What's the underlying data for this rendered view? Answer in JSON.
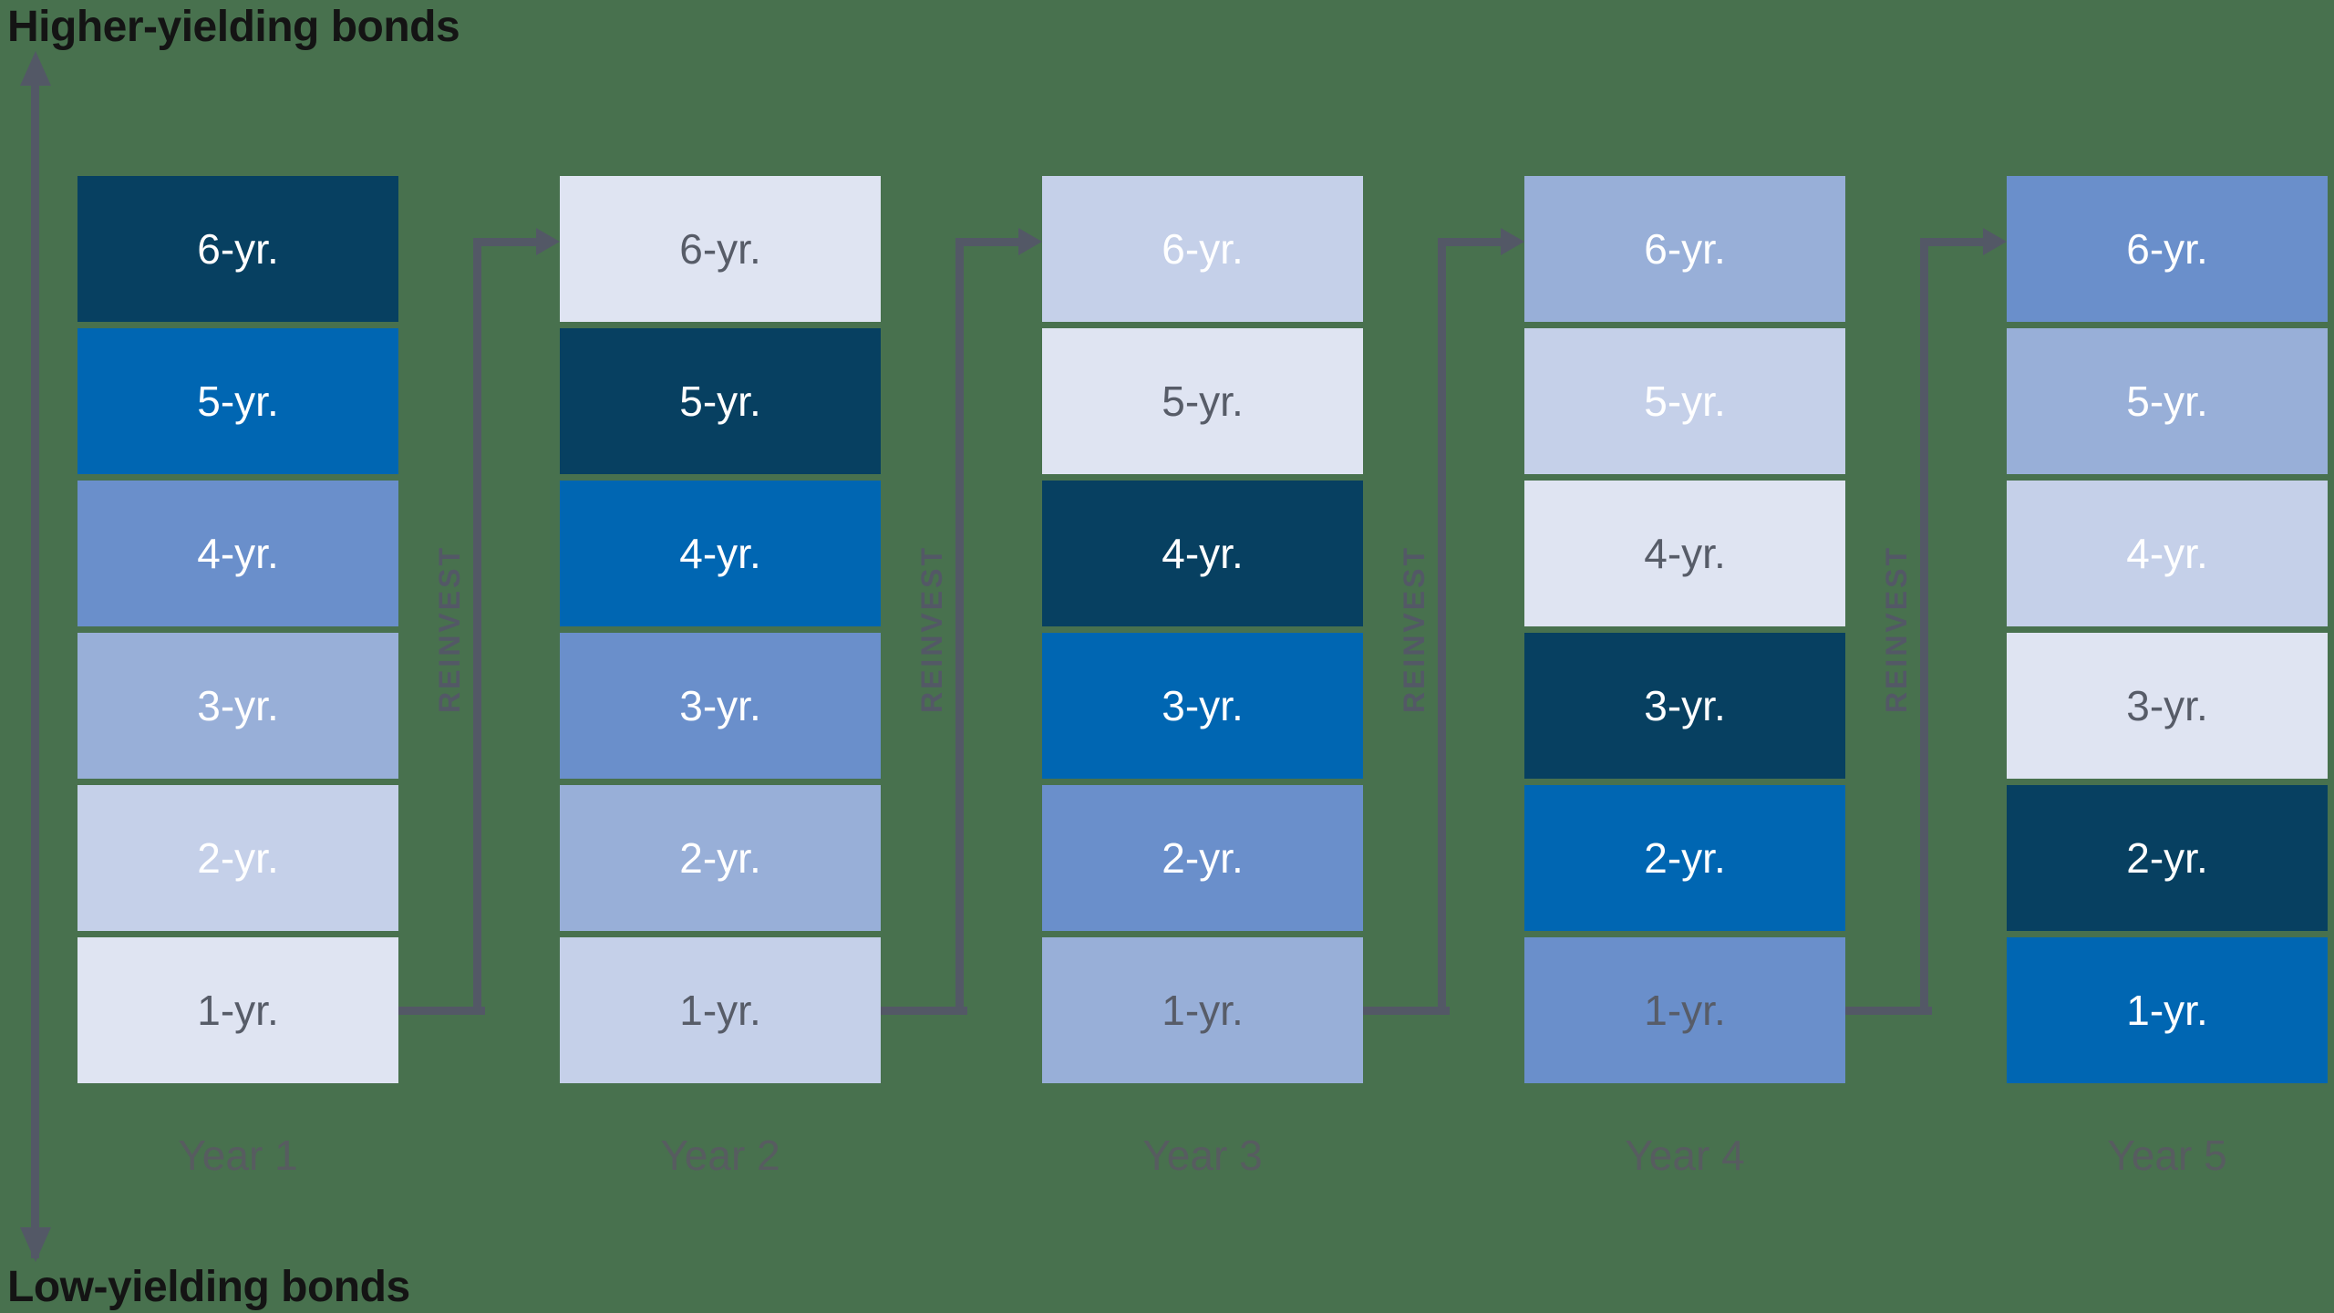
{
  "title_top": "Higher-yielding bonds",
  "title_bottom": "Low-yielding bonds",
  "axis": {
    "high_end_label": "Higher-yielding bonds",
    "low_end_label": "Low-yielding bonds"
  },
  "reinvest_label": "REINVEST",
  "colors": {
    "background": "#48714E",
    "connector_gray": "#535866",
    "year_label_gray": "#575C60",
    "title_text": "#141414",
    "box_text_light": "#FFFFFF",
    "box_text_dark": "#575C68",
    "palette": {
      "navy": "#074061",
      "blue": "#0066B2",
      "medium": "#6A8FCB",
      "light_medium": "#98AFD8",
      "light": "#C5D0E9",
      "lightest": "#DFE4F2"
    }
  },
  "columns": [
    {
      "year_label": "Year 1",
      "boxes": [
        {
          "label": "6-yr.",
          "color": "navy",
          "text": "light"
        },
        {
          "label": "5-yr.",
          "color": "blue",
          "text": "light"
        },
        {
          "label": "4-yr.",
          "color": "medium",
          "text": "light"
        },
        {
          "label": "3-yr.",
          "color": "light_medium",
          "text": "light"
        },
        {
          "label": "2-yr.",
          "color": "light",
          "text": "light"
        },
        {
          "label": "1-yr.",
          "color": "lightest",
          "text": "dark"
        }
      ]
    },
    {
      "year_label": "Year 2",
      "boxes": [
        {
          "label": "6-yr.",
          "color": "lightest",
          "text": "dark"
        },
        {
          "label": "5-yr.",
          "color": "navy",
          "text": "light"
        },
        {
          "label": "4-yr.",
          "color": "blue",
          "text": "light"
        },
        {
          "label": "3-yr.",
          "color": "medium",
          "text": "light"
        },
        {
          "label": "2-yr.",
          "color": "light_medium",
          "text": "light"
        },
        {
          "label": "1-yr.",
          "color": "light",
          "text": "dark"
        }
      ]
    },
    {
      "year_label": "Year 3",
      "boxes": [
        {
          "label": "6-yr.",
          "color": "light",
          "text": "light"
        },
        {
          "label": "5-yr.",
          "color": "lightest",
          "text": "dark"
        },
        {
          "label": "4-yr.",
          "color": "navy",
          "text": "light"
        },
        {
          "label": "3-yr.",
          "color": "blue",
          "text": "light"
        },
        {
          "label": "2-yr.",
          "color": "medium",
          "text": "light"
        },
        {
          "label": "1-yr.",
          "color": "light_medium",
          "text": "dark"
        }
      ]
    },
    {
      "year_label": "Year 4",
      "boxes": [
        {
          "label": "6-yr.",
          "color": "light_medium",
          "text": "light"
        },
        {
          "label": "5-yr.",
          "color": "light",
          "text": "light"
        },
        {
          "label": "4-yr.",
          "color": "lightest",
          "text": "dark"
        },
        {
          "label": "3-yr.",
          "color": "navy",
          "text": "light"
        },
        {
          "label": "2-yr.",
          "color": "blue",
          "text": "light"
        },
        {
          "label": "1-yr.",
          "color": "medium",
          "text": "dark"
        }
      ]
    },
    {
      "year_label": "Year 5",
      "boxes": [
        {
          "label": "6-yr.",
          "color": "medium",
          "text": "light"
        },
        {
          "label": "5-yr.",
          "color": "light_medium",
          "text": "light"
        },
        {
          "label": "4-yr.",
          "color": "light",
          "text": "light"
        },
        {
          "label": "3-yr.",
          "color": "lightest",
          "text": "dark"
        },
        {
          "label": "2-yr.",
          "color": "navy",
          "text": "light"
        },
        {
          "label": "1-yr.",
          "color": "blue",
          "text": "light"
        }
      ]
    }
  ]
}
